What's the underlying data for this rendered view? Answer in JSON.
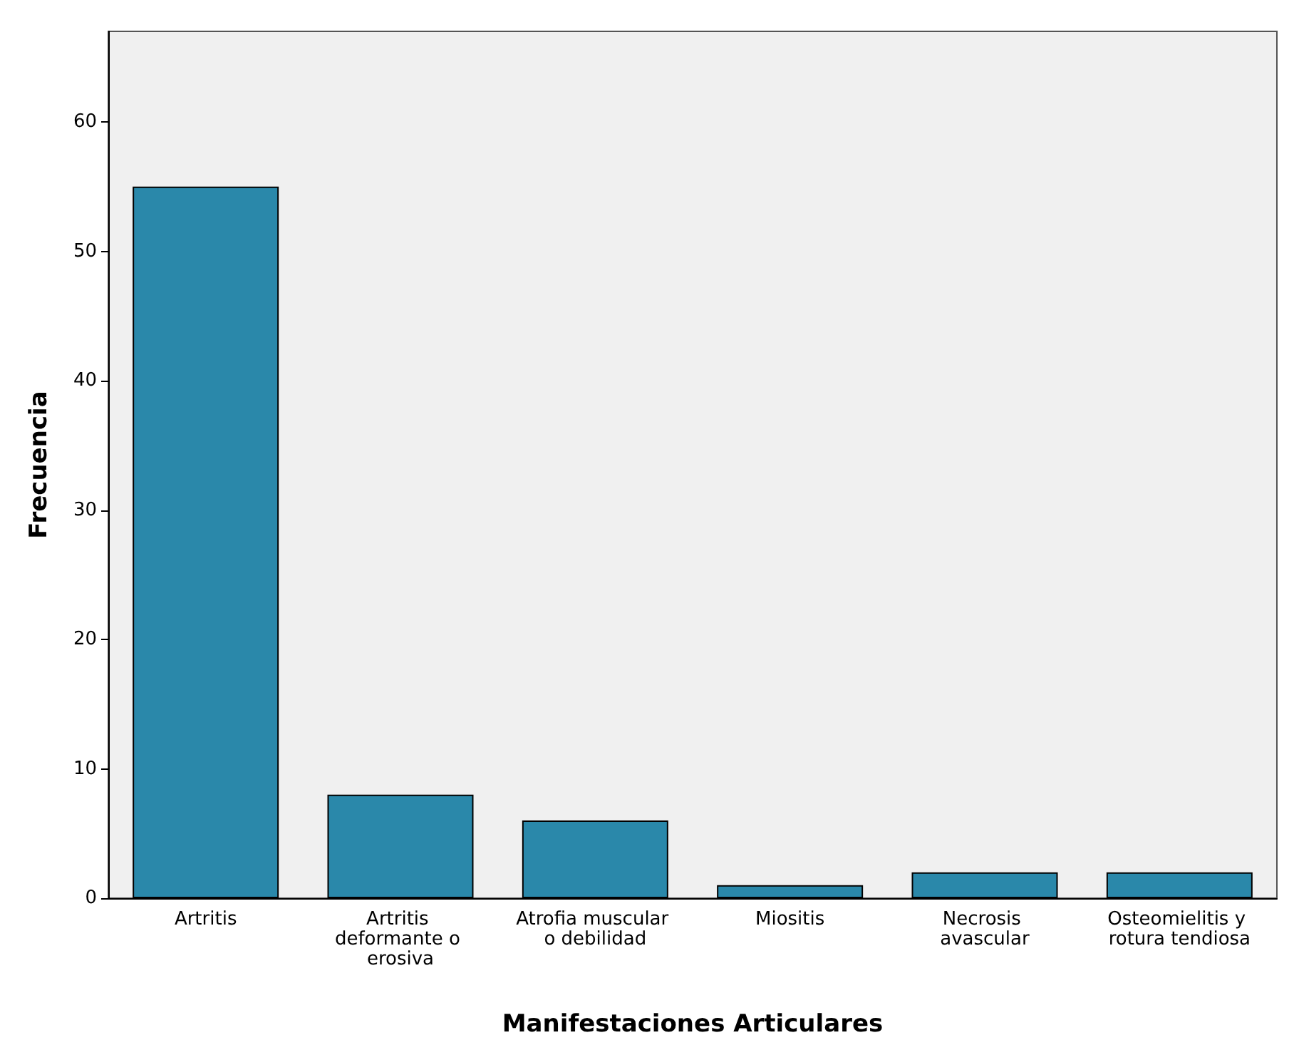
{
  "chart_data": {
    "type": "bar",
    "xlabel": "Manifestaciones Articulares",
    "ylabel": "Frecuencia",
    "categories": [
      "Artritis",
      "Artritis deformante o erosiva",
      "Atrofia muscular o debilidad",
      "Miositis",
      "Necrosis avascular",
      "Osteomielitis y rotura tendiosa"
    ],
    "values": [
      55,
      8,
      6,
      1,
      2,
      2
    ],
    "color": "#2a88aa",
    "ylim": [
      0,
      67
    ],
    "yticks": [
      0,
      10,
      20,
      30,
      40,
      50,
      60
    ]
  }
}
